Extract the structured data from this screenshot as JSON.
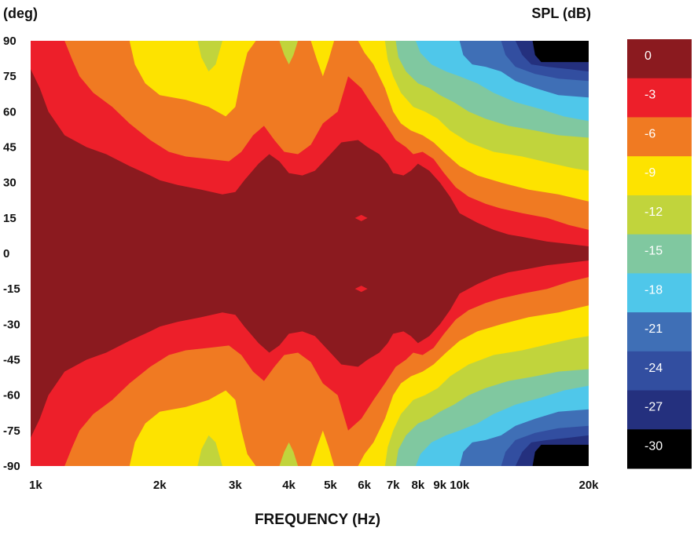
{
  "chart_data": {
    "type": "heatmap",
    "title": "",
    "y_unit_label": "(deg)",
    "xlabel": "FREQUENCY (Hz)",
    "colorbar_label": "SPL (dB)",
    "x_scale": "log",
    "xlim": [
      1000,
      20000
    ],
    "ylim": [
      -90,
      90
    ],
    "x_ticks": [
      {
        "value": 1000,
        "label": "1k"
      },
      {
        "value": 2000,
        "label": "2k"
      },
      {
        "value": 3000,
        "label": "3k"
      },
      {
        "value": 4000,
        "label": "4k"
      },
      {
        "value": 5000,
        "label": "5k"
      },
      {
        "value": 6000,
        "label": "6k"
      },
      {
        "value": 7000,
        "label": "7k"
      },
      {
        "value": 8000,
        "label": "8k"
      },
      {
        "value": 9000,
        "label": "9k"
      },
      {
        "value": 10000,
        "label": "10k"
      },
      {
        "value": 20000,
        "label": "20k"
      }
    ],
    "y_ticks": [
      {
        "value": 90,
        "label": "90"
      },
      {
        "value": 75,
        "label": "75"
      },
      {
        "value": 60,
        "label": "60"
      },
      {
        "value": 45,
        "label": "45"
      },
      {
        "value": 30,
        "label": "30"
      },
      {
        "value": 15,
        "label": "15"
      },
      {
        "value": 0,
        "label": "0"
      },
      {
        "value": -15,
        "label": "-15"
      },
      {
        "value": -30,
        "label": "-30"
      },
      {
        "value": -45,
        "label": "-45"
      },
      {
        "value": -60,
        "label": "-60"
      },
      {
        "value": -75,
        "label": "-75"
      },
      {
        "value": -90,
        "label": "-90"
      }
    ],
    "levels": [
      {
        "label": "0",
        "color": "#8b1a1f"
      },
      {
        "label": "-3",
        "color": "#ed1f2a"
      },
      {
        "label": "-6",
        "color": "#f07a22"
      },
      {
        "label": "-9",
        "color": "#fde300"
      },
      {
        "label": "-12",
        "color": "#c1d43c"
      },
      {
        "label": "-15",
        "color": "#80c8a0"
      },
      {
        "label": "-18",
        "color": "#4fc7ea"
      },
      {
        "label": "-21",
        "color": "#3f6fb6"
      },
      {
        "label": "-24",
        "color": "#324ea0"
      },
      {
        "label": "-27",
        "color": "#24307e"
      },
      {
        "label": "-30",
        "color": "#000000"
      }
    ],
    "contour_boundaries": [
      {
        "region_above": "-3",
        "points": [
          [
            1000,
            78
          ],
          [
            1050,
            70
          ],
          [
            1100,
            60
          ],
          [
            1200,
            50
          ],
          [
            1350,
            45
          ],
          [
            1500,
            42
          ],
          [
            1700,
            37
          ],
          [
            1900,
            33
          ],
          [
            2000,
            31
          ],
          [
            2200,
            29
          ],
          [
            2500,
            27
          ],
          [
            2800,
            25
          ],
          [
            3000,
            26
          ],
          [
            3150,
            31
          ],
          [
            3400,
            38
          ],
          [
            3600,
            42
          ],
          [
            3800,
            39
          ],
          [
            4000,
            34
          ],
          [
            4300,
            33
          ],
          [
            4600,
            35
          ],
          [
            5000,
            42
          ],
          [
            5300,
            47
          ],
          [
            5800,
            48
          ],
          [
            6100,
            45
          ],
          [
            6500,
            42
          ],
          [
            6800,
            38
          ],
          [
            7000,
            34
          ],
          [
            7400,
            33
          ],
          [
            7700,
            35
          ],
          [
            8000,
            38
          ],
          [
            8500,
            35
          ],
          [
            9000,
            30
          ],
          [
            9500,
            24
          ],
          [
            10000,
            17
          ],
          [
            11000,
            13
          ],
          [
            12000,
            10
          ],
          [
            13000,
            8
          ],
          [
            14000,
            7
          ],
          [
            16000,
            5
          ],
          [
            18000,
            4
          ],
          [
            20000,
            3
          ]
        ]
      },
      {
        "region_above": "-6",
        "points": [
          [
            1200,
            90
          ],
          [
            1250,
            82
          ],
          [
            1300,
            75
          ],
          [
            1400,
            68
          ],
          [
            1550,
            62
          ],
          [
            1700,
            55
          ],
          [
            1900,
            48
          ],
          [
            2100,
            43
          ],
          [
            2300,
            41
          ],
          [
            2600,
            40
          ],
          [
            2900,
            39
          ],
          [
            3100,
            43
          ],
          [
            3300,
            50
          ],
          [
            3500,
            54
          ],
          [
            3700,
            48
          ],
          [
            3900,
            43
          ],
          [
            4200,
            42
          ],
          [
            4500,
            46
          ],
          [
            4800,
            55
          ],
          [
            5200,
            60
          ],
          [
            5500,
            75
          ],
          [
            5900,
            70
          ],
          [
            6300,
            62
          ],
          [
            6700,
            55
          ],
          [
            7100,
            48
          ],
          [
            7500,
            45
          ],
          [
            7800,
            42
          ],
          [
            8200,
            43
          ],
          [
            8700,
            40
          ],
          [
            9200,
            34
          ],
          [
            9800,
            28
          ],
          [
            10500,
            24
          ],
          [
            11500,
            21
          ],
          [
            12500,
            19
          ],
          [
            14000,
            17
          ],
          [
            16000,
            15
          ],
          [
            18000,
            12
          ],
          [
            20000,
            10
          ]
        ]
      },
      {
        "region_above": "-9",
        "points": [
          [
            1700,
            90
          ],
          [
            1750,
            80
          ],
          [
            1850,
            72
          ],
          [
            2000,
            67
          ],
          [
            2300,
            65
          ],
          [
            2600,
            62
          ],
          [
            2850,
            58
          ],
          [
            3000,
            62
          ],
          [
            3100,
            75
          ],
          [
            3200,
            85
          ],
          [
            3350,
            90
          ],
          [
            4500,
            90
          ],
          [
            4650,
            82
          ],
          [
            4800,
            75
          ],
          [
            4950,
            82
          ],
          [
            5100,
            90
          ],
          [
            5800,
            90
          ],
          [
            6000,
            85
          ],
          [
            6300,
            80
          ],
          [
            6700,
            70
          ],
          [
            7000,
            60
          ],
          [
            7300,
            55
          ],
          [
            7700,
            52
          ],
          [
            8200,
            50
          ],
          [
            8700,
            47
          ],
          [
            9300,
            42
          ],
          [
            10000,
            37
          ],
          [
            11000,
            33
          ],
          [
            12500,
            30
          ],
          [
            14500,
            27
          ],
          [
            17000,
            25
          ],
          [
            20000,
            22
          ]
        ]
      },
      {
        "region_above": "-12",
        "points": [
          [
            2450,
            90
          ],
          [
            2500,
            83
          ],
          [
            2600,
            77
          ],
          [
            2700,
            80
          ],
          [
            2800,
            90
          ],
          [
            3800,
            90
          ],
          [
            3900,
            84
          ],
          [
            4000,
            80
          ],
          [
            4100,
            84
          ],
          [
            4200,
            90
          ],
          [
            6700,
            90
          ],
          [
            6800,
            82
          ],
          [
            7000,
            75
          ],
          [
            7300,
            68
          ],
          [
            7800,
            62
          ],
          [
            8300,
            60
          ],
          [
            8900,
            57
          ],
          [
            9500,
            52
          ],
          [
            10500,
            47
          ],
          [
            12000,
            43
          ],
          [
            14000,
            41
          ],
          [
            16500,
            38
          ],
          [
            18500,
            36
          ],
          [
            20000,
            35
          ]
        ]
      },
      {
        "region_above": "-15",
        "points": [
          [
            7100,
            90
          ],
          [
            7200,
            83
          ],
          [
            7500,
            77
          ],
          [
            8000,
            72
          ],
          [
            8500,
            70
          ],
          [
            9000,
            67
          ],
          [
            9700,
            64
          ],
          [
            10500,
            60
          ],
          [
            11500,
            57
          ],
          [
            13000,
            54
          ],
          [
            15000,
            52
          ],
          [
            17000,
            50
          ],
          [
            20000,
            49
          ]
        ]
      },
      {
        "region_above": "-18",
        "points": [
          [
            7900,
            90
          ],
          [
            8100,
            85
          ],
          [
            8600,
            80
          ],
          [
            9300,
            77
          ],
          [
            10000,
            75
          ],
          [
            11000,
            72
          ],
          [
            12000,
            68
          ],
          [
            13500,
            64
          ],
          [
            15500,
            61
          ],
          [
            17500,
            58
          ],
          [
            20000,
            56
          ]
        ]
      },
      {
        "region_above": "-21",
        "points": [
          [
            10000,
            90
          ],
          [
            10200,
            84
          ],
          [
            10700,
            80
          ],
          [
            11500,
            79
          ],
          [
            12500,
            77
          ],
          [
            13500,
            73
          ],
          [
            15000,
            70
          ],
          [
            17000,
            67
          ],
          [
            20000,
            66
          ]
        ]
      },
      {
        "region_above": "-24",
        "points": [
          [
            12500,
            90
          ],
          [
            12800,
            84
          ],
          [
            13500,
            79
          ],
          [
            15000,
            76
          ],
          [
            17000,
            74
          ],
          [
            20000,
            73
          ]
        ]
      },
      {
        "region_above": "-27",
        "points": [
          [
            13500,
            90
          ],
          [
            14000,
            84
          ],
          [
            14700,
            80
          ],
          [
            16000,
            79
          ],
          [
            18000,
            78
          ],
          [
            20000,
            77
          ]
        ]
      },
      {
        "region_above": "-30",
        "points": [
          [
            14800,
            90
          ],
          [
            15000,
            84
          ],
          [
            15500,
            81
          ],
          [
            17000,
            81
          ],
          [
            18500,
            81
          ],
          [
            20000,
            81
          ]
        ]
      }
    ],
    "islands": [
      {
        "level": "-3",
        "x": 5900,
        "y": 15
      },
      {
        "level": "-3",
        "x": 5900,
        "y": -15
      }
    ],
    "symmetric_about_zero": true
  }
}
